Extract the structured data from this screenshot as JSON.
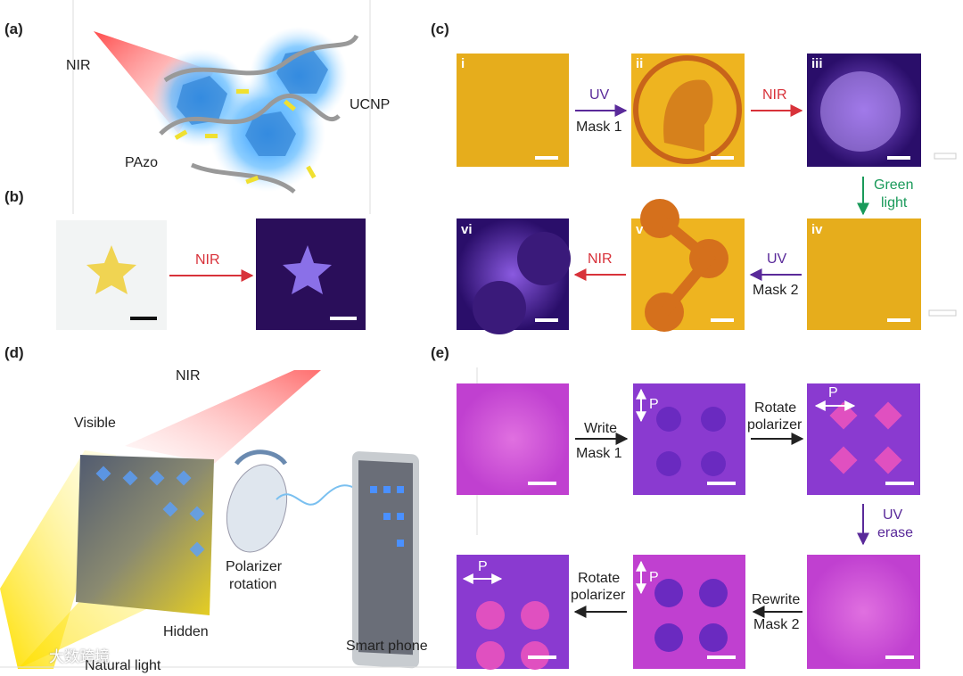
{
  "panel_a": {
    "label": "(a)",
    "nir": "NIR",
    "ucnp": "UCNP",
    "pazo": "PAzo"
  },
  "panel_b": {
    "label": "(b)",
    "arrow": "NIR"
  },
  "panel_c": {
    "label": "(c)",
    "images": [
      "i",
      "ii",
      "iii",
      "iv",
      "v",
      "vi"
    ],
    "steps": [
      {
        "line1": "UV",
        "line2": "Mask 1"
      },
      {
        "line1": "NIR"
      },
      {
        "line1": "Green",
        "line2": "light"
      },
      {
        "line1": "UV",
        "line2": "Mask 2"
      },
      {
        "line1": "NIR"
      }
    ]
  },
  "panel_d": {
    "label": "(d)",
    "nir": "NIR",
    "visible": "Visible",
    "hidden": "Hidden",
    "natural_light": "Natural light",
    "polarizer_line1": "Polarizer",
    "polarizer_line2": "rotation",
    "phone": "Smart phone"
  },
  "panel_e": {
    "label": "(e)",
    "steps": [
      {
        "line1": "Write",
        "line2": "Mask 1"
      },
      {
        "line1": "Rotate",
        "line2": "polarizer"
      },
      {
        "line1": "UV",
        "line2": "erase"
      },
      {
        "line1": "Rewrite",
        "line2": "Mask 2"
      },
      {
        "line1": "Rotate",
        "line2": "polarizer"
      }
    ],
    "polarizer_marks": [
      "P",
      "P",
      "P",
      "P"
    ]
  },
  "watermark": "大数跨境"
}
